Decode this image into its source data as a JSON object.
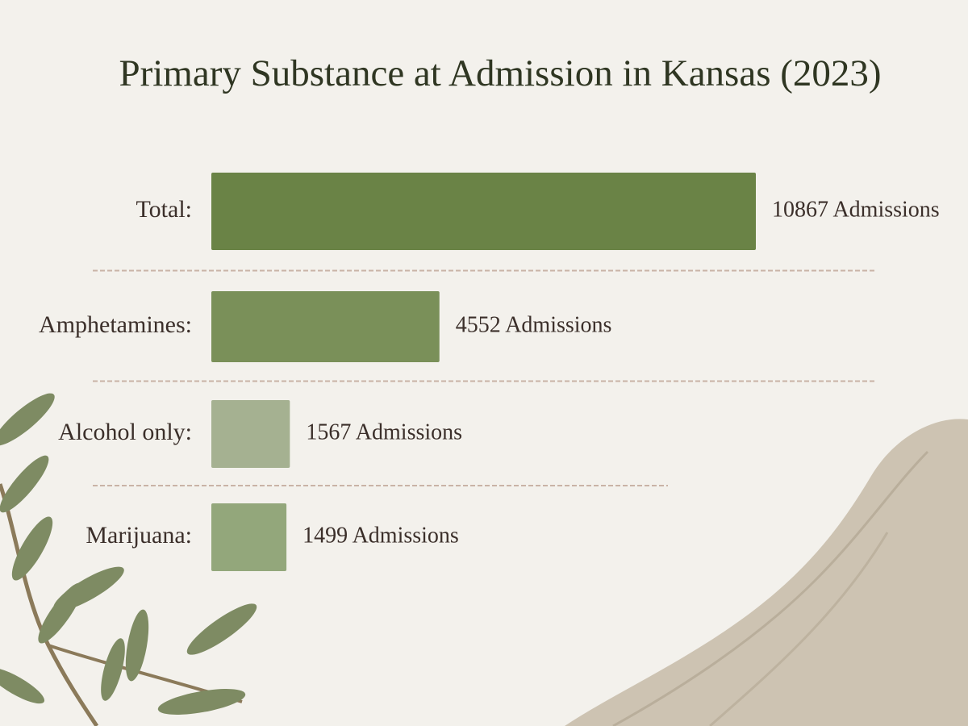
{
  "chart_data": {
    "type": "hbar",
    "title": "Primary Substance at Admission in Kansas (2023)",
    "categories": [
      "Total:",
      "Amphetamines:",
      "Alcohol only:",
      "Marijuana:"
    ],
    "values": [
      10867,
      4552,
      1567,
      1499
    ],
    "value_labels": [
      "10867 Admissions",
      "4552 Admissions",
      "1567 Admissions",
      "1499 Admissions"
    ],
    "colors": [
      "#6a8346",
      "#7a9059",
      "#a5b191",
      "#93a77b"
    ]
  }
}
